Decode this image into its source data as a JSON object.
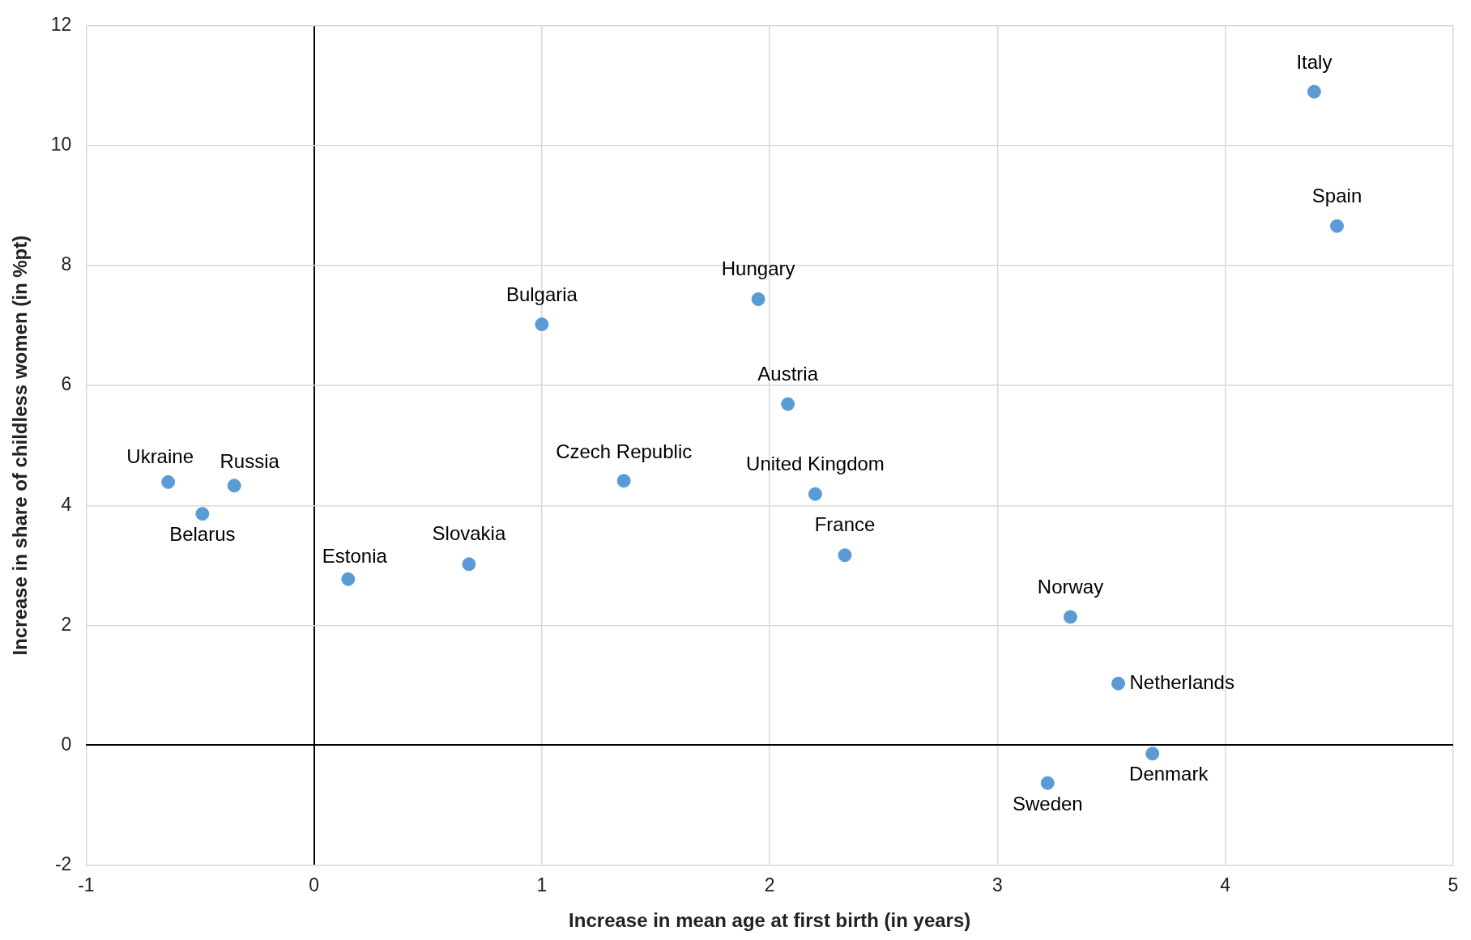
{
  "chart_data": {
    "type": "scatter",
    "xlabel": "Increase in mean age at first birth (in years)",
    "ylabel": "Increase in share of childless women (in %pt)",
    "x": [
      4.39,
      4.49,
      1.95,
      1.0,
      2.08,
      -0.64,
      -0.35,
      1.36,
      2.2,
      -0.49,
      2.33,
      0.68,
      0.15,
      3.32,
      3.53,
      3.68,
      3.22
    ],
    "values": [
      10.9,
      8.66,
      7.44,
      7.02,
      5.69,
      4.39,
      4.33,
      4.41,
      4.19,
      3.86,
      3.17,
      3.02,
      2.77,
      2.14,
      1.03,
      -0.14,
      -0.63
    ],
    "value_labels": [
      "Italy",
      "Spain",
      "Hungary",
      "Bulgaria",
      "Austria",
      "Ukraine",
      "Russia",
      "Czech Republic",
      "United Kingdom",
      "Belarus",
      "France",
      "Slovakia",
      "Estonia",
      "Norway",
      "Netherlands",
      "Denmark",
      "Sweden"
    ],
    "color": "#5b9bd5",
    "marker": "circle",
    "xlim": [
      -1,
      5
    ],
    "xticks": [
      -1,
      0,
      1,
      2,
      3,
      4,
      5
    ],
    "ylim": [
      -2,
      12
    ],
    "yticks": [
      -2,
      0,
      2,
      4,
      6,
      8,
      10,
      12
    ],
    "grid": true,
    "legend": false
  }
}
